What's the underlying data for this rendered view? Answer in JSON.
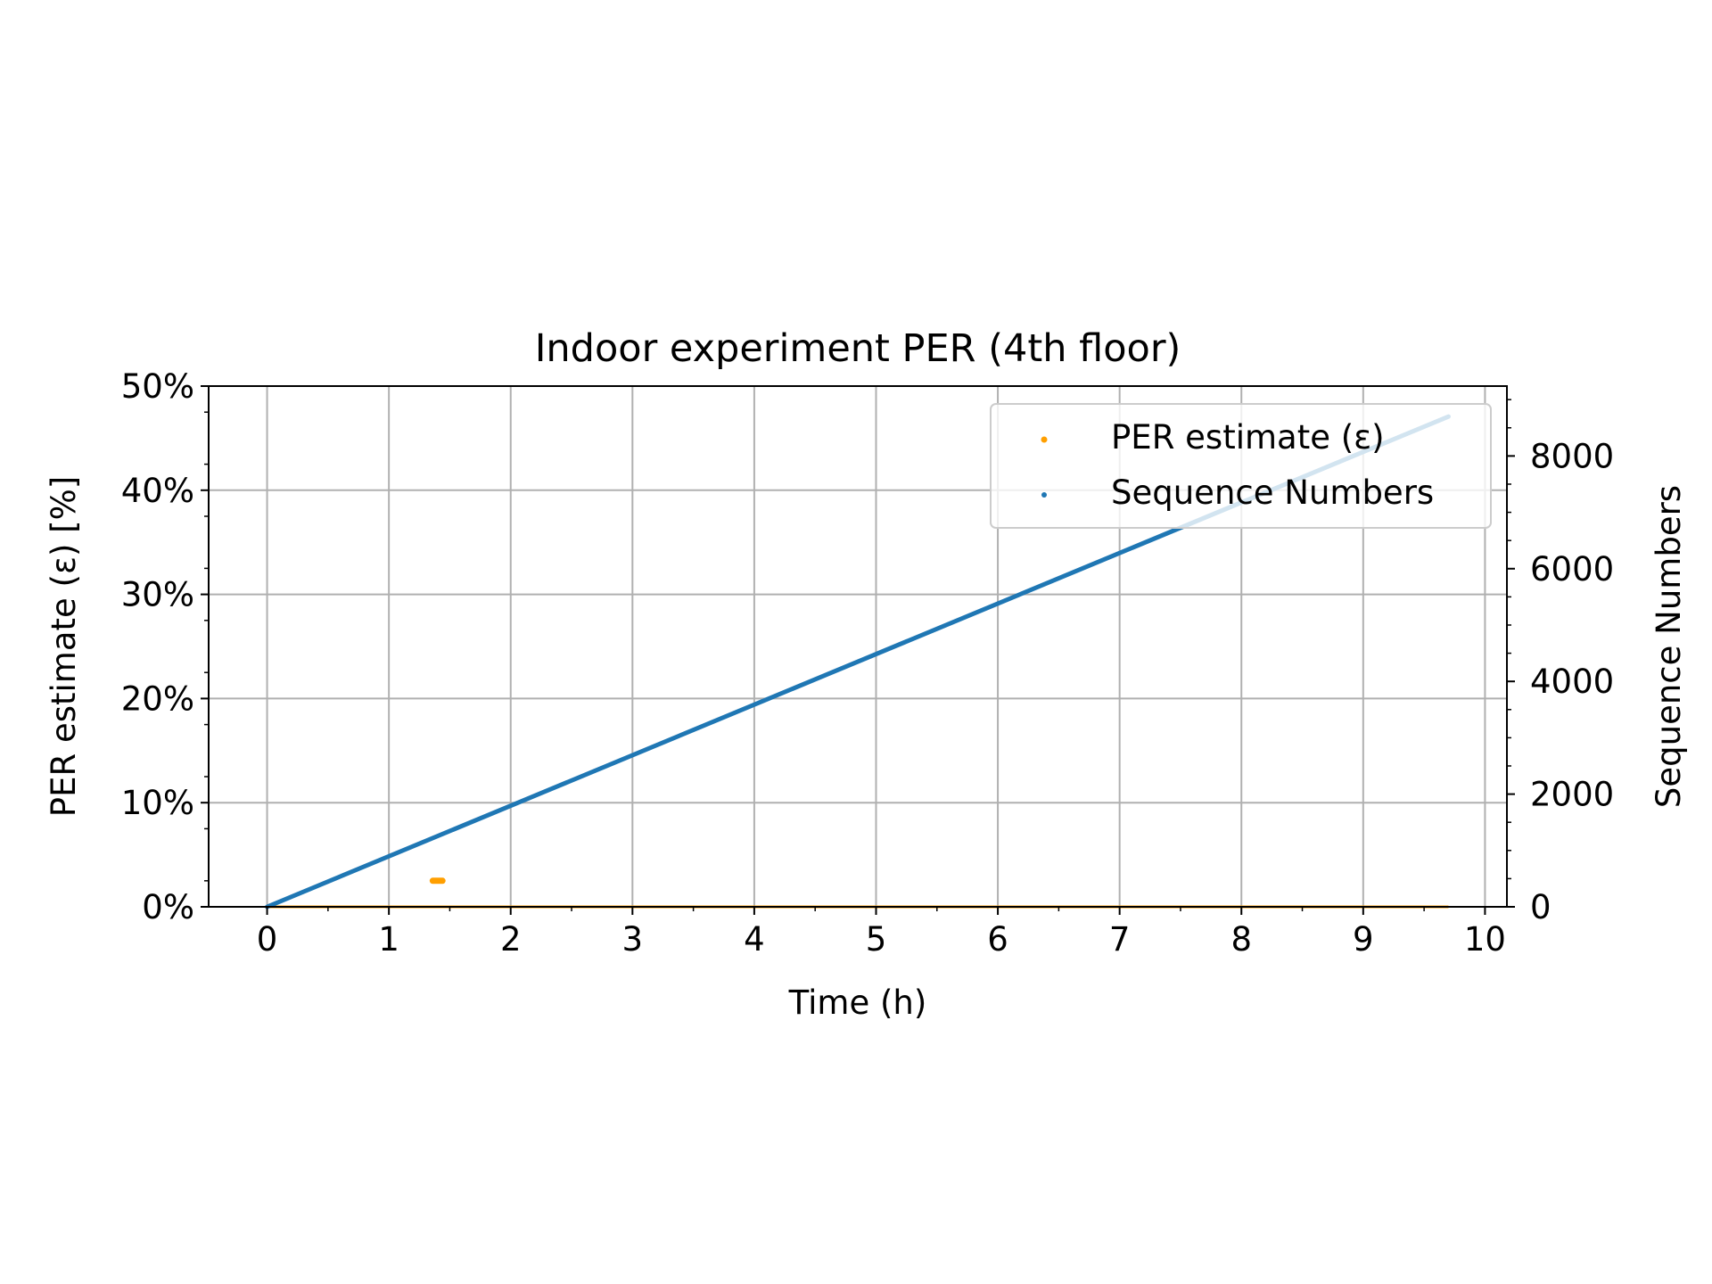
{
  "chart_data": {
    "type": "scatter",
    "title": "Indoor experiment PER (4th floor)",
    "xlabel": "Time (h)",
    "ylabel_left": "PER estimate (ε) [%]",
    "ylabel_right": "Sequence Numbers",
    "xlim": [
      -0.48,
      10.18
    ],
    "ylim_left": [
      0,
      50
    ],
    "ylim_right": [
      0,
      9240
    ],
    "x_ticks": [
      0,
      1,
      2,
      3,
      4,
      5,
      6,
      7,
      8,
      9,
      10
    ],
    "x_tick_labels": [
      "0",
      "1",
      "2",
      "3",
      "4",
      "5",
      "6",
      "7",
      "8",
      "9",
      "10"
    ],
    "y_left_ticks": [
      0,
      10,
      20,
      30,
      40,
      50
    ],
    "y_left_tick_labels": [
      "0%",
      "10%",
      "20%",
      "30%",
      "40%",
      "50%"
    ],
    "y_right_ticks": [
      0,
      2000,
      4000,
      6000,
      8000
    ],
    "y_right_tick_labels": [
      "0",
      "2000",
      "4000",
      "6000",
      "8000"
    ],
    "grid": true,
    "legend_position": "top-right",
    "legend": [
      "PER estimate (ε)",
      "Sequence Numbers"
    ],
    "series": [
      {
        "name": "PER estimate (ε)",
        "axis": "left",
        "color": "#ff9f00",
        "x_start": 0,
        "x_end": 9.7,
        "baseline_value": 0,
        "spike_x": [
          1.36,
          1.37,
          1.38,
          1.39,
          1.4,
          1.41,
          1.42,
          1.43,
          1.44
        ],
        "spike_value": 2.5
      },
      {
        "name": "Sequence Numbers",
        "axis": "right",
        "color": "#1f77b4",
        "x": [
          0,
          9.7
        ],
        "y": [
          0,
          8700
        ]
      }
    ]
  }
}
